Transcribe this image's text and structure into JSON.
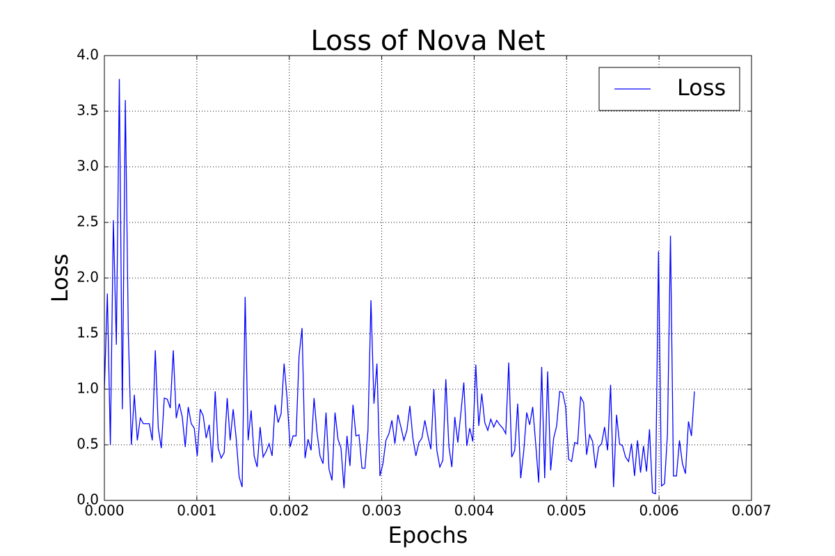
{
  "chart_data": {
    "type": "line",
    "title": "Loss of Nova Net",
    "x_label": "Epochs",
    "y_label": "Loss",
    "xlim": [
      0,
      0.007
    ],
    "ylim": [
      0,
      4.0
    ],
    "xticks": [
      {
        "value": 0,
        "label": "0.000"
      },
      {
        "value": 0.001,
        "label": "0.001"
      },
      {
        "value": 0.002,
        "label": "0.002"
      },
      {
        "value": 0.003,
        "label": "0.003"
      },
      {
        "value": 0.004,
        "label": "0.004"
      },
      {
        "value": 0.005,
        "label": "0.005"
      },
      {
        "value": 0.006,
        "label": "0.006"
      },
      {
        "value": 0.007,
        "label": "0.007"
      }
    ],
    "yticks": [
      {
        "value": 0,
        "label": "0.0"
      },
      0.5,
      {
        "value": 1,
        "label": "1.0"
      },
      1.5,
      {
        "value": 2,
        "label": "2.0"
      },
      2.5,
      {
        "value": 3,
        "label": "3.0"
      },
      3.5,
      {
        "value": 4,
        "label": "4.0"
      }
    ],
    "grid": true,
    "legend": "upper right",
    "x": [
      0,
      3.24e-05,
      6.48e-05,
      9.72e-05,
      0.0001296,
      0.000162,
      0.0001944,
      0.0002268,
      0.0002592,
      0.0002916,
      0.000324,
      0.0003564,
      0.0003888,
      0.0004212,
      0.0004536,
      0.000486,
      0.0005184,
      0.0005508,
      0.0005832,
      0.0006156,
      0.000648,
      0.0006804,
      0.0007128,
      0.0007452,
      0.0007776,
      0.00081,
      0.0008424,
      0.0008748,
      0.0009072,
      0.0009396,
      0.000972,
      0.0010044,
      0.0010368,
      0.0010692,
      0.0011016,
      0.001134,
      0.0011664,
      0.0011988,
      0.0012312,
      0.0012636,
      0.001296,
      0.0013284,
      0.0013608,
      0.0013932,
      0.0014256,
      0.001458,
      0.0014904,
      0.0015228,
      0.0015552,
      0.0015876,
      0.00162,
      0.0016524,
      0.0016848,
      0.0017172,
      0.0017496,
      0.001782,
      0.0018144,
      0.0018468,
      0.0018792,
      0.0019116,
      0.001944,
      0.0019764,
      0.0020088,
      0.0020412,
      0.0020736,
      0.002106,
      0.0021384,
      0.0021708,
      0.0022032,
      0.0022356,
      0.002268,
      0.0023004,
      0.0023328,
      0.0023652,
      0.0023976,
      0.00243,
      0.0024624,
      0.0024948,
      0.0025272,
      0.0025596,
      0.002592,
      0.0026244,
      0.0026568,
      0.0026892,
      0.0027216,
      0.002754,
      0.0027864,
      0.0028188,
      0.0028512,
      0.0028836,
      0.002916,
      0.0029484,
      0.0029808,
      0.0030132,
      0.0030456,
      0.003078,
      0.0031104,
      0.0031428,
      0.0031752,
      0.0032076,
      0.00324,
      0.0032724,
      0.0033048,
      0.0033372,
      0.0033696,
      0.003402,
      0.0034344,
      0.0034668,
      0.0034992,
      0.0035316,
      0.003564,
      0.0035964,
      0.0036288,
      0.0036612,
      0.0036936,
      0.003726,
      0.0037584,
      0.0037908,
      0.0038232,
      0.0038556,
      0.003888,
      0.0039204,
      0.0039528,
      0.0039852,
      0.0040176,
      0.00405,
      0.0040824,
      0.0041148,
      0.0041472,
      0.0041796,
      0.004212,
      0.0042444,
      0.0042768,
      0.0043092,
      0.0043416,
      0.004374,
      0.0044064,
      0.0044388,
      0.0044712,
      0.0045036,
      0.004536,
      0.0045684,
      0.0046008,
      0.0046332,
      0.0046656,
      0.004698,
      0.0047304,
      0.0047628,
      0.0047952,
      0.0048276,
      0.00486,
      0.0048924,
      0.0049248,
      0.0049572,
      0.0049896,
      0.005022,
      0.0050544,
      0.0050868,
      0.0051192,
      0.0051516,
      0.005184,
      0.0052164,
      0.0052488,
      0.0052812,
      0.0053136,
      0.005346,
      0.0053784,
      0.0054108,
      0.0054432,
      0.0054756,
      0.005508,
      0.0055404,
      0.0055728,
      0.0056052,
      0.0056376,
      0.00567,
      0.0057024,
      0.0057348,
      0.0057672,
      0.0057996,
      0.005832,
      0.0058644,
      0.0058968,
      0.0059292,
      0.0059616,
      0.005994,
      0.0060264,
      0.0060588,
      0.0060912,
      0.0061236,
      0.006156,
      0.0061884,
      0.0062208,
      0.0062532,
      0.0062856,
      0.006318,
      0.0063504,
      0.0063828
    ],
    "series": [
      {
        "name": "Loss",
        "color": "#0000ff",
        "values": [
          1.0,
          1.86,
          0.5,
          2.52,
          1.4,
          3.79,
          0.82,
          3.6,
          1.5,
          0.5,
          0.95,
          0.54,
          0.74,
          0.69,
          0.69,
          0.69,
          0.54,
          1.35,
          0.65,
          0.47,
          0.92,
          0.91,
          0.83,
          1.35,
          0.74,
          0.87,
          0.75,
          0.48,
          0.84,
          0.69,
          0.65,
          0.4,
          0.82,
          0.76,
          0.56,
          0.68,
          0.34,
          0.98,
          0.47,
          0.38,
          0.43,
          0.92,
          0.54,
          0.82,
          0.56,
          0.21,
          0.12,
          1.83,
          0.54,
          0.81,
          0.4,
          0.3,
          0.66,
          0.39,
          0.44,
          0.51,
          0.4,
          0.86,
          0.7,
          0.78,
          1.23,
          0.92,
          0.48,
          0.58,
          0.58,
          1.3,
          1.55,
          0.38,
          0.55,
          0.45,
          0.92,
          0.61,
          0.4,
          0.33,
          0.79,
          0.28,
          0.18,
          0.79,
          0.55,
          0.47,
          0.11,
          0.58,
          0.31,
          0.86,
          0.58,
          0.59,
          0.29,
          0.29,
          0.63,
          1.8,
          0.87,
          1.23,
          0.22,
          0.33,
          0.54,
          0.6,
          0.72,
          0.51,
          0.77,
          0.66,
          0.54,
          0.63,
          0.85,
          0.56,
          0.4,
          0.52,
          0.56,
          0.72,
          0.58,
          0.46,
          1.0,
          0.45,
          0.3,
          0.36,
          1.09,
          0.49,
          0.3,
          0.75,
          0.52,
          0.78,
          1.06,
          0.49,
          0.65,
          0.53,
          1.22,
          0.67,
          0.96,
          0.7,
          0.63,
          0.73,
          0.66,
          0.72,
          0.68,
          0.65,
          0.6,
          1.24,
          0.39,
          0.45,
          0.87,
          0.2,
          0.44,
          0.79,
          0.68,
          0.84,
          0.51,
          0.16,
          1.2,
          0.2,
          1.16,
          0.27,
          0.56,
          0.67,
          0.98,
          0.97,
          0.84,
          0.37,
          0.35,
          0.52,
          0.51,
          0.93,
          0.88,
          0.41,
          0.59,
          0.53,
          0.29,
          0.48,
          0.51,
          0.66,
          0.45,
          1.04,
          0.12,
          0.77,
          0.51,
          0.49,
          0.39,
          0.35,
          0.51,
          0.22,
          0.54,
          0.25,
          0.49,
          0.26,
          0.64,
          0.07,
          0.06,
          2.24,
          0.13,
          0.15,
          0.6,
          2.38,
          0.22,
          0.22,
          0.54,
          0.33,
          0.24,
          0.71,
          0.58,
          0.98
        ]
      }
    ]
  }
}
